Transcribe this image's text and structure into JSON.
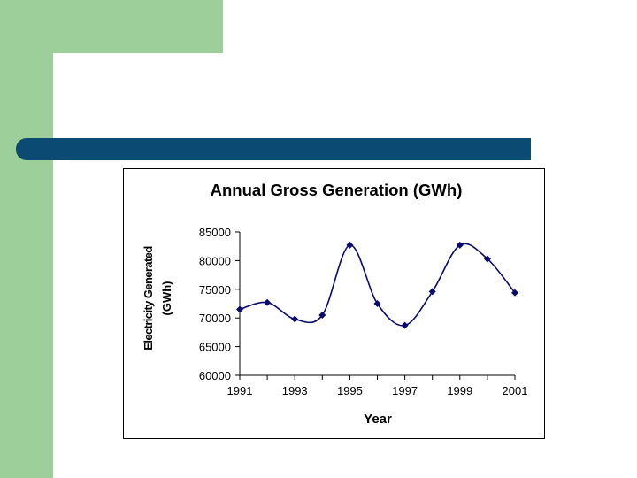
{
  "colors": {
    "sidebar_green": "#9dcf9a",
    "bar_blue": "#0b4a72",
    "series_color": "#0a0a6e"
  },
  "chart_data": {
    "type": "line",
    "title": "Annual Gross Generation (GWh)",
    "xlabel": "Year",
    "ylabel_lines": [
      "Electricity Generated",
      "(GWh)"
    ],
    "x": [
      1991,
      1992,
      1993,
      1994,
      1995,
      1996,
      1997,
      1998,
      1999,
      2000,
      2001
    ],
    "series": [
      {
        "name": "Gross Generation",
        "values": [
          71500,
          72700,
          69800,
          70500,
          82700,
          72500,
          68700,
          74600,
          82700,
          80300,
          74400
        ]
      }
    ],
    "xticks": [
      "1991",
      "1993",
      "1995",
      "1997",
      "1999",
      "2001"
    ],
    "xlim": [
      1991,
      2001
    ],
    "yticks": [
      "60000",
      "65000",
      "70000",
      "75000",
      "80000",
      "85000"
    ],
    "ylim": [
      60000,
      85000
    ],
    "grid": false,
    "smoothed": true,
    "marker": "diamond"
  }
}
